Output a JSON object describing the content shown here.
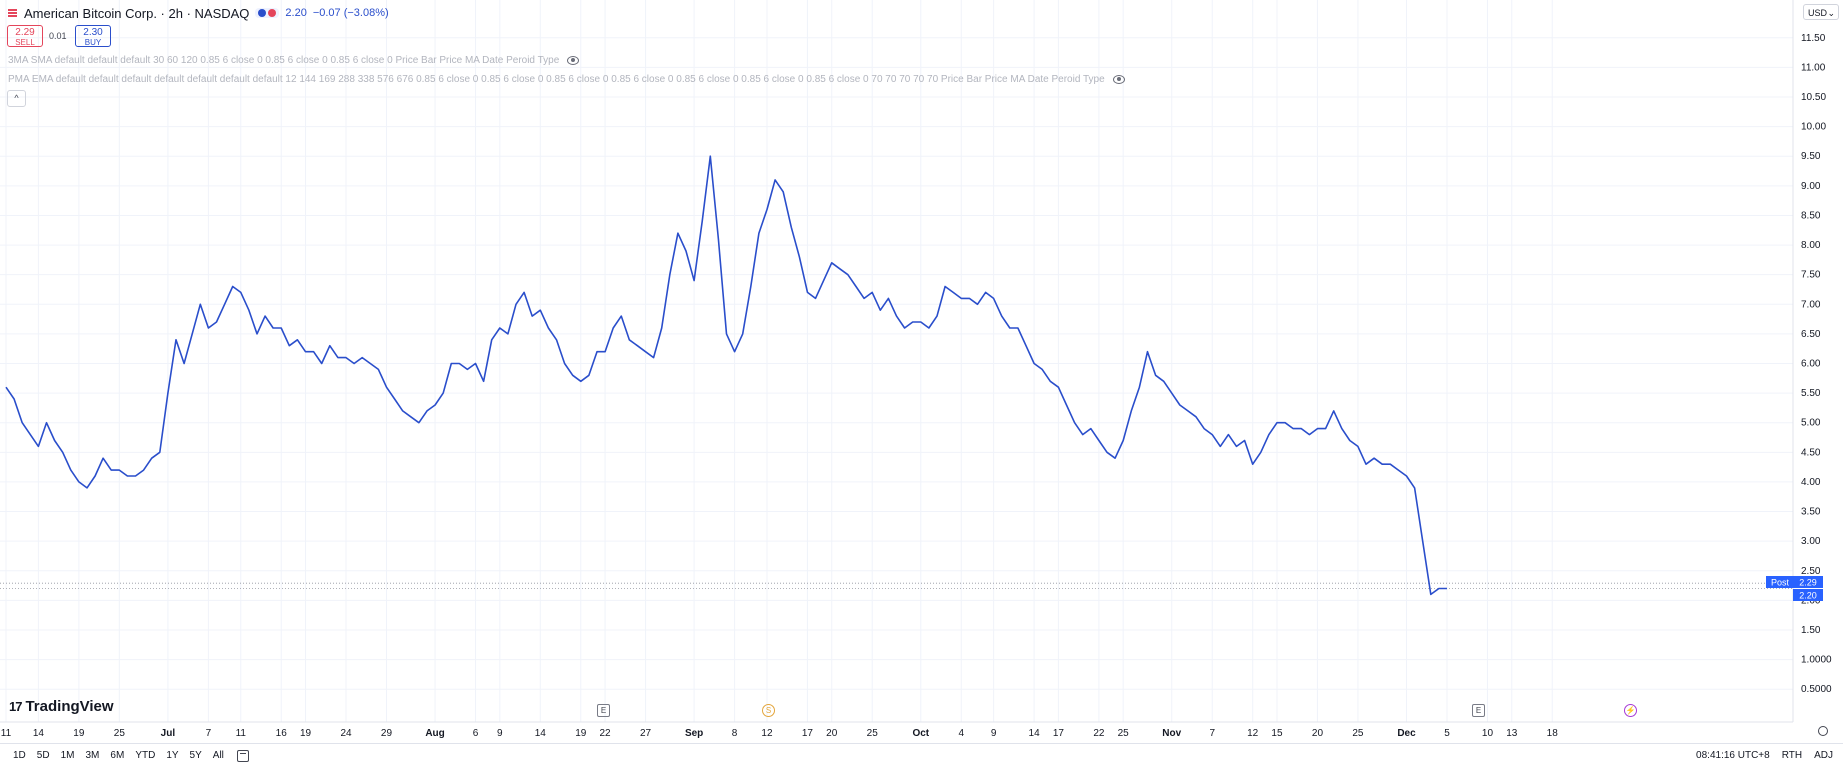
{
  "header": {
    "symbol_title": "American Bitcoin Corp. · 2h · NASDAQ",
    "last_price": "2.20",
    "change": "−0.07 (−3.08%)",
    "menu_icon": "hamburger-icon",
    "flag_colors": [
      "#2a4ecb",
      "#e4455b"
    ]
  },
  "trade": {
    "sell_price": "2.29",
    "sell_label": "SELL",
    "spread": "0.01",
    "buy_price": "2.30",
    "buy_label": "BUY"
  },
  "indicators": [
    {
      "text": "3MA SMA default default default 30 60 120 0.85 6 close 0 0.85 6 close 0 0.85 6 close 0 Price Bar Price MA Date Peroid Type",
      "icon": "eye-icon"
    },
    {
      "text": "PMA EMA default default default default default default default 12 144 169 288 338 576 676 0.85 6 close 0 0.85 6 close 0 0.85 6 close 0 0.85 6 close 0 0.85 6 close 0 0.85 6 close 0 0.85 6 close 0 70 70 70 70 70 Price Bar Price MA Date Peroid Type",
      "icon": "eye-icon"
    }
  ],
  "collapse_glyph": "^",
  "currency": "USD",
  "currency_dropdown": "⌄",
  "logo": {
    "mark": "17",
    "text": "TradingView"
  },
  "post_label": "Post",
  "price_labels": {
    "post": "2.29",
    "last": "2.20"
  },
  "events": [
    {
      "glyph": "E",
      "kind": "earnings"
    },
    {
      "glyph": "S",
      "kind": "split"
    },
    {
      "glyph": "E",
      "kind": "earnings"
    },
    {
      "glyph": "⚡",
      "kind": "news"
    }
  ],
  "bottombar": {
    "ranges": [
      "1D",
      "5D",
      "1M",
      "3M",
      "6M",
      "YTD",
      "1Y",
      "5Y",
      "All"
    ],
    "time": "08:41:16 UTC+8",
    "session": "RTH",
    "adj": "ADJ"
  },
  "colors": {
    "line": "#2a4ecb",
    "accent": "#2962ff",
    "sell": "#e4455b",
    "buy": "#2a4ecb",
    "grid": "#f0f3fa"
  },
  "chart_data": {
    "type": "line",
    "yticks": [
      "11.50",
      "11.00",
      "10.50",
      "10.00",
      "9.50",
      "9.00",
      "8.50",
      "8.00",
      "7.50",
      "7.00",
      "6.50",
      "6.00",
      "5.50",
      "5.00",
      "4.50",
      "4.00",
      "3.50",
      "3.00",
      "2.50",
      "2.00",
      "1.50",
      "1.0000",
      "0.5000"
    ],
    "ylim": [
      0.25,
      11.75
    ],
    "xticks": [
      "11",
      "14",
      "19",
      "25",
      "Jul",
      "7",
      "11",
      "16",
      "19",
      "24",
      "29",
      "Aug",
      "6",
      "9",
      "14",
      "19",
      "22",
      "27",
      "Sep",
      "8",
      "12",
      "17",
      "20",
      "25",
      "Oct",
      "4",
      "9",
      "14",
      "17",
      "22",
      "25",
      "Nov",
      "7",
      "12",
      "15",
      "20",
      "25",
      "Dec",
      "5",
      "10",
      "13",
      "18"
    ],
    "xtick_bold": [
      "Jul",
      "Aug",
      "Sep",
      "Oct",
      "Nov",
      "Dec"
    ],
    "x_index": [
      0,
      4,
      9,
      14,
      20,
      25,
      29,
      34,
      37,
      42,
      47,
      53,
      58,
      61,
      66,
      71,
      74,
      79,
      85,
      90,
      94,
      99,
      102,
      107,
      113,
      118,
      122,
      127,
      130,
      135,
      138,
      144,
      149,
      154,
      157,
      162,
      167,
      173,
      178,
      183,
      186,
      191
    ],
    "xlim": [
      0,
      220
    ],
    "series": [
      {
        "values": [
          [
            0,
            5.6
          ],
          [
            1,
            5.4
          ],
          [
            2,
            5.0
          ],
          [
            3,
            4.8
          ],
          [
            4,
            4.6
          ],
          [
            5,
            5.0
          ],
          [
            6,
            4.7
          ],
          [
            7,
            4.5
          ],
          [
            8,
            4.2
          ],
          [
            9,
            4.0
          ],
          [
            10,
            3.9
          ],
          [
            11,
            4.1
          ],
          [
            12,
            4.4
          ],
          [
            13,
            4.2
          ],
          [
            14,
            4.2
          ],
          [
            15,
            4.1
          ],
          [
            16,
            4.1
          ],
          [
            17,
            4.2
          ],
          [
            18,
            4.4
          ],
          [
            19,
            4.5
          ],
          [
            20,
            5.5
          ],
          [
            21,
            6.4
          ],
          [
            22,
            6.0
          ],
          [
            23,
            6.5
          ],
          [
            24,
            7.0
          ],
          [
            25,
            6.6
          ],
          [
            26,
            6.7
          ],
          [
            27,
            7.0
          ],
          [
            28,
            7.3
          ],
          [
            29,
            7.2
          ],
          [
            30,
            6.9
          ],
          [
            31,
            6.5
          ],
          [
            32,
            6.8
          ],
          [
            33,
            6.6
          ],
          [
            34,
            6.6
          ],
          [
            35,
            6.3
          ],
          [
            36,
            6.4
          ],
          [
            37,
            6.2
          ],
          [
            38,
            6.2
          ],
          [
            39,
            6.0
          ],
          [
            40,
            6.3
          ],
          [
            41,
            6.1
          ],
          [
            42,
            6.1
          ],
          [
            43,
            6.0
          ],
          [
            44,
            6.1
          ],
          [
            45,
            6.0
          ],
          [
            46,
            5.9
          ],
          [
            47,
            5.6
          ],
          [
            48,
            5.4
          ],
          [
            49,
            5.2
          ],
          [
            50,
            5.1
          ],
          [
            51,
            5.0
          ],
          [
            52,
            5.2
          ],
          [
            53,
            5.3
          ],
          [
            54,
            5.5
          ],
          [
            55,
            6.0
          ],
          [
            56,
            6.0
          ],
          [
            57,
            5.9
          ],
          [
            58,
            6.0
          ],
          [
            59,
            5.7
          ],
          [
            60,
            6.4
          ],
          [
            61,
            6.6
          ],
          [
            62,
            6.5
          ],
          [
            63,
            7.0
          ],
          [
            64,
            7.2
          ],
          [
            65,
            6.8
          ],
          [
            66,
            6.9
          ],
          [
            67,
            6.6
          ],
          [
            68,
            6.4
          ],
          [
            69,
            6.0
          ],
          [
            70,
            5.8
          ],
          [
            71,
            5.7
          ],
          [
            72,
            5.8
          ],
          [
            73,
            6.2
          ],
          [
            74,
            6.2
          ],
          [
            75,
            6.6
          ],
          [
            76,
            6.8
          ],
          [
            77,
            6.4
          ],
          [
            78,
            6.3
          ],
          [
            79,
            6.2
          ],
          [
            80,
            6.1
          ],
          [
            81,
            6.6
          ],
          [
            82,
            7.5
          ],
          [
            83,
            8.2
          ],
          [
            84,
            7.9
          ],
          [
            85,
            7.4
          ],
          [
            86,
            8.4
          ],
          [
            87,
            9.5
          ],
          [
            88,
            8.1
          ],
          [
            89,
            6.5
          ],
          [
            90,
            6.2
          ],
          [
            91,
            6.5
          ],
          [
            92,
            7.3
          ],
          [
            93,
            8.2
          ],
          [
            94,
            8.6
          ],
          [
            95,
            9.1
          ],
          [
            96,
            8.9
          ],
          [
            97,
            8.3
          ],
          [
            98,
            7.8
          ],
          [
            99,
            7.2
          ],
          [
            100,
            7.1
          ],
          [
            101,
            7.4
          ],
          [
            102,
            7.7
          ],
          [
            103,
            7.6
          ],
          [
            104,
            7.5
          ],
          [
            105,
            7.3
          ],
          [
            106,
            7.1
          ],
          [
            107,
            7.2
          ],
          [
            108,
            6.9
          ],
          [
            109,
            7.1
          ],
          [
            110,
            6.8
          ],
          [
            111,
            6.6
          ],
          [
            112,
            6.7
          ],
          [
            113,
            6.7
          ],
          [
            114,
            6.6
          ],
          [
            115,
            6.8
          ],
          [
            116,
            7.3
          ],
          [
            117,
            7.2
          ],
          [
            118,
            7.1
          ],
          [
            119,
            7.1
          ],
          [
            120,
            7.0
          ],
          [
            121,
            7.2
          ],
          [
            122,
            7.1
          ],
          [
            123,
            6.8
          ],
          [
            124,
            6.6
          ],
          [
            125,
            6.6
          ],
          [
            126,
            6.3
          ],
          [
            127,
            6.0
          ],
          [
            128,
            5.9
          ],
          [
            129,
            5.7
          ],
          [
            130,
            5.6
          ],
          [
            131,
            5.3
          ],
          [
            132,
            5.0
          ],
          [
            133,
            4.8
          ],
          [
            134,
            4.9
          ],
          [
            135,
            4.7
          ],
          [
            136,
            4.5
          ],
          [
            137,
            4.4
          ],
          [
            138,
            4.7
          ],
          [
            139,
            5.2
          ],
          [
            140,
            5.6
          ],
          [
            141,
            6.2
          ],
          [
            142,
            5.8
          ],
          [
            143,
            5.7
          ],
          [
            144,
            5.5
          ],
          [
            145,
            5.3
          ],
          [
            146,
            5.2
          ],
          [
            147,
            5.1
          ],
          [
            148,
            4.9
          ],
          [
            149,
            4.8
          ],
          [
            150,
            4.6
          ],
          [
            151,
            4.8
          ],
          [
            152,
            4.6
          ],
          [
            153,
            4.7
          ],
          [
            154,
            4.3
          ],
          [
            155,
            4.5
          ],
          [
            156,
            4.8
          ],
          [
            157,
            5.0
          ],
          [
            158,
            5.0
          ],
          [
            159,
            4.9
          ],
          [
            160,
            4.9
          ],
          [
            161,
            4.8
          ],
          [
            162,
            4.9
          ],
          [
            163,
            4.9
          ],
          [
            164,
            5.2
          ],
          [
            165,
            4.9
          ],
          [
            166,
            4.7
          ],
          [
            167,
            4.6
          ],
          [
            168,
            4.3
          ],
          [
            169,
            4.4
          ],
          [
            170,
            4.3
          ],
          [
            171,
            4.3
          ],
          [
            172,
            4.2
          ],
          [
            173,
            4.1
          ],
          [
            174,
            3.9
          ],
          [
            175,
            3.0
          ],
          [
            176,
            2.1
          ],
          [
            177,
            2.2
          ],
          [
            178,
            2.2
          ]
        ]
      }
    ],
    "reference_lines": [
      2.29,
      2.2
    ],
    "grid": true
  }
}
